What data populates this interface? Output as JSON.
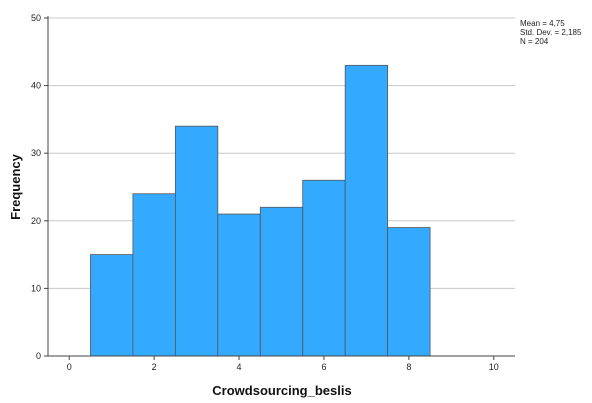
{
  "chart_data": {
    "type": "bar",
    "xlabel": "Crowdsourcing_beslis",
    "ylabel": "Frequency",
    "xlim": [
      -0.5,
      10.5
    ],
    "ylim": [
      0,
      50
    ],
    "x_ticks": [
      "0",
      "2",
      "4",
      "6",
      "8",
      "10"
    ],
    "y_ticks": [
      "0",
      "10",
      "20",
      "30",
      "40",
      "50"
    ],
    "grid": "horizontal",
    "categories": [
      "1",
      "2",
      "3",
      "4",
      "5",
      "6",
      "7",
      "8"
    ],
    "values": [
      15,
      24,
      34,
      21,
      22,
      26,
      43,
      19
    ],
    "bar_color": "#33aaff",
    "bar_edge_color": "#555555",
    "stats": {
      "mean": "Mean = 4,75",
      "std_dev": "Std. Dev. = 2,185",
      "n": "N = 204"
    }
  }
}
